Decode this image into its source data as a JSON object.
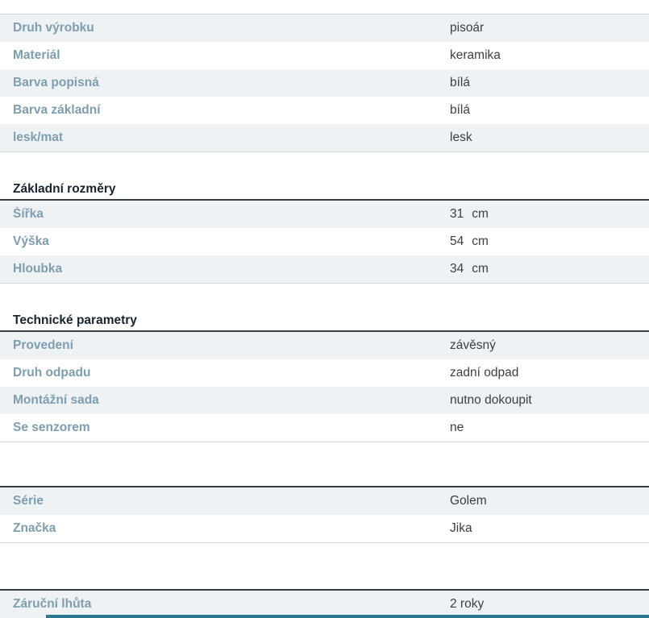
{
  "page": {
    "accent_bar_color": "#2b7a8c",
    "label_color": "#7e9eb0",
    "shaded_row_color": "#eef2f4"
  },
  "spec_table": {
    "groups": [
      {
        "title": "",
        "rows": [
          {
            "label": "Druh výrobku",
            "value": "pisoár",
            "unit": ""
          },
          {
            "label": "Materiál",
            "value": "keramika",
            "unit": ""
          },
          {
            "label": "Barva popisná",
            "value": "bílá",
            "unit": ""
          },
          {
            "label": "Barva základní",
            "value": "bílá",
            "unit": ""
          },
          {
            "label": "lesk/mat",
            "value": "lesk",
            "unit": ""
          }
        ]
      },
      {
        "title": "Základní rozměry",
        "rows": [
          {
            "label": "Šířka",
            "value": "31",
            "unit": "cm"
          },
          {
            "label": "Výška",
            "value": "54",
            "unit": "cm"
          },
          {
            "label": "Hloubka",
            "value": "34",
            "unit": "cm"
          }
        ]
      },
      {
        "title": "Technické parametry",
        "rows": [
          {
            "label": "Provedení",
            "value": "závěsný",
            "unit": ""
          },
          {
            "label": "Druh odpadu",
            "value": "zadní odpad",
            "unit": ""
          },
          {
            "label": "Montážní sada",
            "value": "nutno dokoupit",
            "unit": ""
          },
          {
            "label": "Se senzorem",
            "value": "ne",
            "unit": ""
          }
        ]
      },
      {
        "title": "",
        "rows": [
          {
            "label": "Série",
            "value": "Golem",
            "unit": ""
          },
          {
            "label": "Značka",
            "value": "Jika",
            "unit": ""
          }
        ]
      },
      {
        "title": "",
        "rows": [
          {
            "label": "Záruční lhůta",
            "value": "2 roky",
            "unit": ""
          }
        ]
      }
    ]
  }
}
